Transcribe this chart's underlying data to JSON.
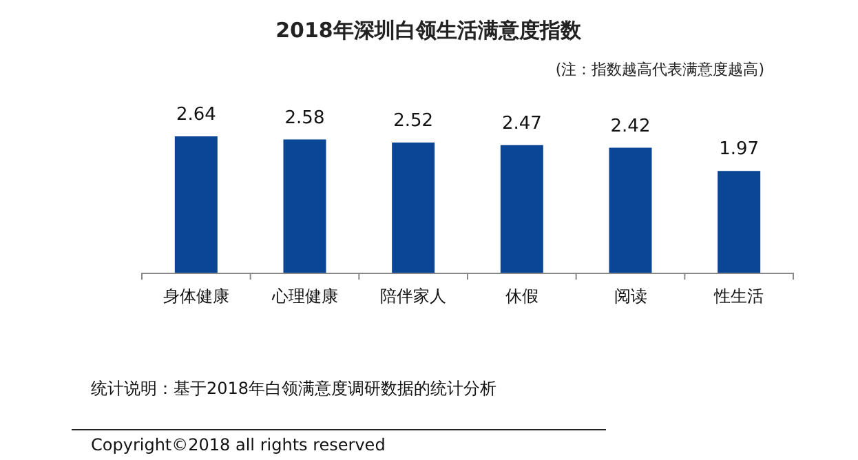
{
  "chart_data": {
    "type": "bar",
    "title": "2018年深圳白领生活满意度指数",
    "subtitle": "(注：指数越高代表满意度越高)",
    "categories": [
      "身体健康",
      "心理健康",
      "陪伴家人",
      "休假",
      "阅读",
      "性生活"
    ],
    "values": [
      2.64,
      2.58,
      2.52,
      2.47,
      2.42,
      1.97
    ],
    "color": "#0b4595",
    "data_labels": true,
    "annotations": [
      "统计说明：基于2018年白领满意度调研数据的统计分析",
      "Copyright©2018 all rights reserved"
    ]
  }
}
